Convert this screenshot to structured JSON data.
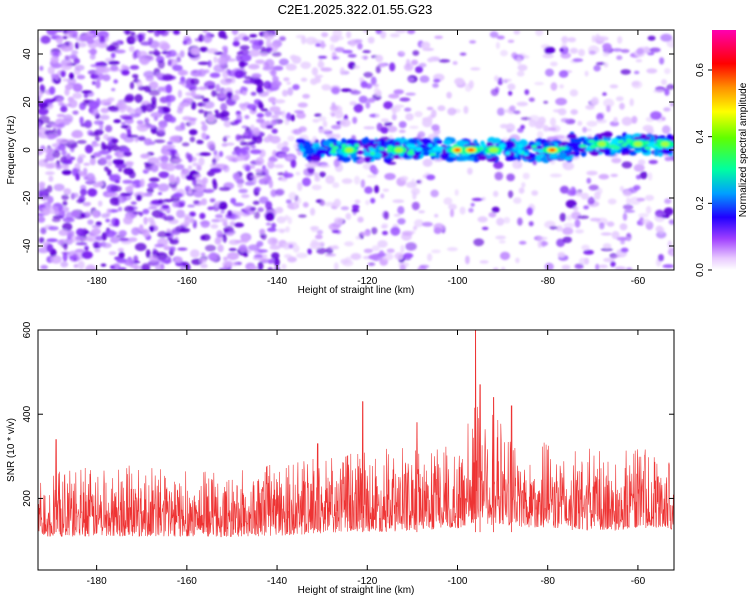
{
  "title": "C2E1.2025.322.01.55.G23",
  "chart_data": [
    {
      "type": "heatmap",
      "title": "C2E1.2025.322.01.55.G23",
      "xlabel": "Height of straight line (km)",
      "ylabel": "Frequency (Hz)",
      "xlim": [
        -193,
        -52
      ],
      "ylim": [
        -50,
        50
      ],
      "x_ticks": [
        -180,
        -160,
        -140,
        -120,
        -100,
        -80,
        -60
      ],
      "x_tick_labels": [
        "-180",
        "-160",
        "-140",
        "-120",
        "-100",
        "-80",
        "-60"
      ],
      "y_ticks": [
        -40,
        -20,
        0,
        20,
        40
      ],
      "y_tick_labels": [
        "-40",
        "-20",
        "0",
        "20",
        "40"
      ],
      "colorbar": {
        "label": "Normalized spectral amplitude",
        "range": [
          0,
          0.72
        ],
        "ticks": [
          0,
          0.2,
          0.4,
          0.6
        ],
        "tick_labels": [
          "0.0",
          "0.2",
          "0.4",
          "0.6"
        ],
        "colors": [
          "#ffffff",
          "#c080ff",
          "#6000e0",
          "#0000ff",
          "#00c0ff",
          "#00ff80",
          "#80ff00",
          "#ffff00",
          "#ff8000",
          "#ff0000",
          "#ff00c0"
        ]
      },
      "signal_track": {
        "description": "bright band near 0 Hz",
        "x_start": -135,
        "x_end": -52,
        "frequency_hz": 0,
        "hotspots": [
          {
            "x": -124,
            "value": 0.3
          },
          {
            "x": -113,
            "value": 0.28
          },
          {
            "x": -100,
            "value": 0.55
          },
          {
            "x": -97,
            "value": 0.62
          },
          {
            "x": -92,
            "value": 0.4
          },
          {
            "x": -79,
            "value": 0.58
          },
          {
            "x": -68,
            "value": 0.3
          },
          {
            "x": -60,
            "value": 0.35
          },
          {
            "x": -54,
            "value": 0.3
          }
        ]
      }
    },
    {
      "type": "line",
      "title": "",
      "xlabel": "Height of straight line (km)",
      "ylabel": "SNR (10 * v/v)",
      "xlim": [
        -193,
        -52
      ],
      "ylim": [
        30,
        600
      ],
      "x_ticks": [
        -180,
        -160,
        -140,
        -120,
        -100,
        -80,
        -60
      ],
      "x_tick_labels": [
        "-180",
        "-160",
        "-140",
        "-120",
        "-100",
        "-80",
        "-60"
      ],
      "y_ticks": [
        200,
        400,
        600
      ],
      "y_tick_labels": [
        "200",
        "400",
        "600"
      ],
      "color": "#ee3333",
      "series": [
        {
          "name": "SNR",
          "envelope_x": [
            -193,
            -180,
            -170,
            -160,
            -150,
            -140,
            -130,
            -122,
            -115,
            -108,
            -100,
            -97,
            -95,
            -93,
            -90,
            -85,
            -80,
            -75,
            -70,
            -65,
            -60,
            -55,
            -52
          ],
          "envelope_low": [
            80,
            80,
            80,
            80,
            80,
            80,
            85,
            85,
            85,
            90,
            95,
            80,
            90,
            85,
            95,
            95,
            95,
            90,
            90,
            90,
            95,
            95,
            95
          ],
          "envelope_high": [
            270,
            280,
            280,
            275,
            270,
            285,
            300,
            330,
            320,
            330,
            320,
            430,
            520,
            420,
            380,
            330,
            340,
            320,
            320,
            310,
            330,
            320,
            300
          ],
          "peaks": [
            {
              "x": -189,
              "y": 340
            },
            {
              "x": -131,
              "y": 330
            },
            {
              "x": -121,
              "y": 430
            },
            {
              "x": -109,
              "y": 380
            },
            {
              "x": -96,
              "y": 600
            },
            {
              "x": -95,
              "y": 470
            },
            {
              "x": -92,
              "y": 440
            },
            {
              "x": -88,
              "y": 420
            }
          ]
        }
      ]
    }
  ]
}
